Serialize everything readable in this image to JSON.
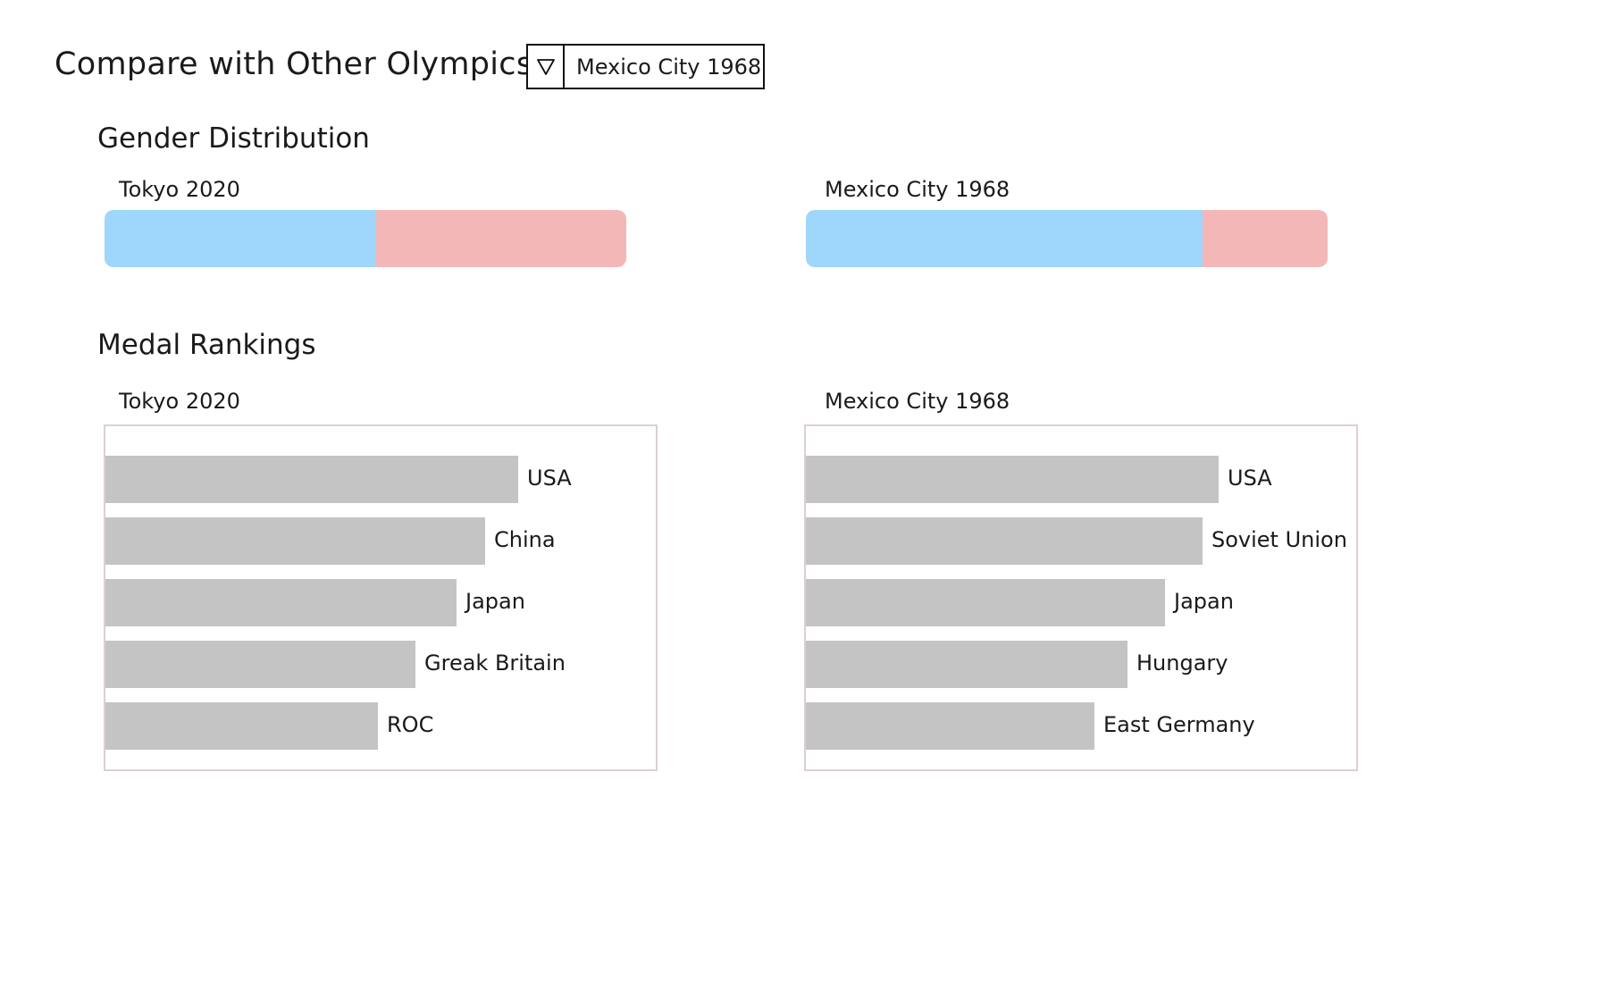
{
  "header": {
    "title": "Compare with Other Olympics",
    "selector": {
      "selected": "Mexico City 1968",
      "icon": "triangle-down-icon"
    }
  },
  "gender": {
    "title": "Gender Distribution",
    "colors": {
      "male": "#9fd6fb",
      "female": "#f4b7b7"
    },
    "left": {
      "label": "Tokyo 2020",
      "male_share": 0.52
    },
    "right": {
      "label": "Mexico City 1968",
      "male_share": 0.76
    }
  },
  "medals": {
    "title": "Medal Rankings",
    "bar_color": "#c4c4c4",
    "left": {
      "label": "Tokyo 2020",
      "rows": [
        {
          "country": "USA",
          "value": 1.0
        },
        {
          "country": "China",
          "value": 0.92
        },
        {
          "country": "Japan",
          "value": 0.85
        },
        {
          "country": "Greak Britain",
          "value": 0.75
        },
        {
          "country": "ROC",
          "value": 0.66
        }
      ]
    },
    "right": {
      "label": "Mexico City 1968",
      "rows": [
        {
          "country": "USA",
          "value": 1.0
        },
        {
          "country": "Soviet Union",
          "value": 0.96
        },
        {
          "country": "Japan",
          "value": 0.87
        },
        {
          "country": "Hungary",
          "value": 0.78
        },
        {
          "country": "East Germany",
          "value": 0.7
        }
      ]
    }
  }
}
